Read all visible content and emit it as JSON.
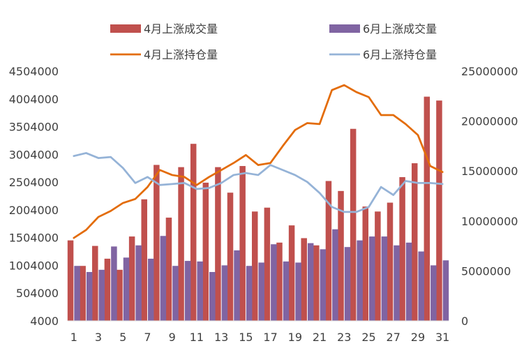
{
  "chart_data": {
    "type": "bar",
    "x": [
      1,
      2,
      3,
      4,
      5,
      6,
      7,
      8,
      9,
      10,
      11,
      12,
      13,
      14,
      15,
      16,
      17,
      18,
      19,
      20,
      21,
      22,
      23,
      24,
      25,
      26,
      27,
      28,
      29,
      30,
      31
    ],
    "x_tick_labels": [
      "1",
      "3",
      "5",
      "7",
      "9",
      "11",
      "13",
      "15",
      "17",
      "19",
      "21",
      "23",
      "25",
      "27",
      "29",
      "31"
    ],
    "y_left": {
      "ylim": [
        4000,
        4504000
      ],
      "ticks": [
        "4000",
        "504000",
        "1004000",
        "1504000",
        "2004000",
        "2504000",
        "3004000",
        "3504000",
        "4004000",
        "4504000"
      ]
    },
    "y_right": {
      "ylim": [
        0,
        25000000
      ],
      "ticks": [
        "0",
        "5000000",
        "10000000",
        "15000000",
        "20000000",
        "25000000"
      ]
    },
    "legend": {
      "position": "top",
      "items": [
        {
          "name": "4月上涨成交量",
          "kind": "bar",
          "color": "#C0504D"
        },
        {
          "name": "6月上涨成交量",
          "kind": "bar",
          "color": "#8064A2"
        },
        {
          "name": "4月上涨持仓量",
          "kind": "line",
          "color": "#E36C09"
        },
        {
          "name": "6月上涨持仓量",
          "kind": "line",
          "color": "#95B3D7"
        }
      ]
    },
    "series": [
      {
        "name": "4月上涨成交量",
        "type": "bar",
        "axis": "left",
        "color": "#C0504D",
        "values": [
          1454000,
          994000,
          1354000,
          1124000,
          924000,
          1524000,
          2194000,
          2814000,
          1864000,
          2774000,
          3194000,
          2494000,
          2774000,
          2314000,
          2794000,
          1974000,
          2044000,
          1414000,
          1724000,
          1494000,
          1364000,
          2524000,
          2344000,
          3464000,
          2064000,
          1974000,
          2134000,
          2594000,
          2844000,
          4044000,
          3974000
        ]
      },
      {
        "name": "6月上涨成交量",
        "type": "bar",
        "axis": "left",
        "color": "#8064A2",
        "values": [
          994000,
          884000,
          924000,
          1344000,
          1144000,
          1364000,
          1124000,
          1534000,
          994000,
          1084000,
          1074000,
          884000,
          1004000,
          1274000,
          994000,
          1054000,
          1384000,
          1074000,
          1054000,
          1404000,
          1294000,
          1654000,
          1334000,
          1454000,
          1524000,
          1524000,
          1364000,
          1414000,
          1254000,
          1004000,
          1094000
        ]
      },
      {
        "name": "4月上涨持仓量",
        "type": "line",
        "axis": "right",
        "color": "#E36C09",
        "values": [
          8300000,
          9100000,
          10400000,
          11000000,
          11800000,
          12200000,
          13400000,
          15100000,
          14600000,
          14400000,
          13600000,
          14400000,
          15100000,
          15800000,
          16600000,
          15600000,
          15800000,
          17500000,
          19100000,
          19800000,
          19700000,
          23100000,
          23600000,
          22900000,
          22400000,
          20600000,
          20600000,
          19700000,
          18600000,
          15500000,
          14900000
        ]
      },
      {
        "name": "6月上涨持仓量",
        "type": "line",
        "axis": "right",
        "color": "#95B3D7",
        "values": [
          16500000,
          16800000,
          16300000,
          16400000,
          15300000,
          13800000,
          14400000,
          13600000,
          13700000,
          13800000,
          13200000,
          13300000,
          13800000,
          14600000,
          14800000,
          14600000,
          15600000,
          15100000,
          14600000,
          13900000,
          12800000,
          11400000,
          10900000,
          10900000,
          11400000,
          13400000,
          12600000,
          14000000,
          13800000,
          13800000,
          13700000
        ]
      }
    ]
  }
}
